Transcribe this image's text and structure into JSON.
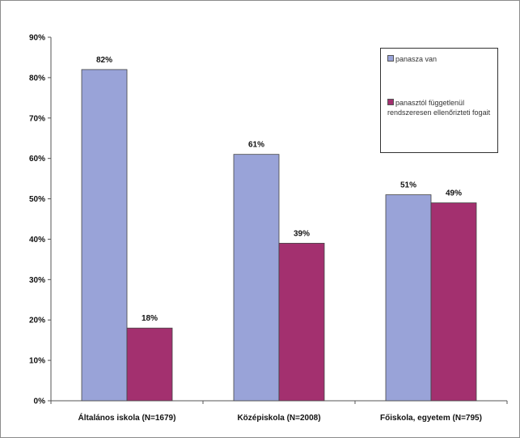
{
  "chart_data": {
    "type": "bar",
    "categories": [
      "Általános iskola (N=1679)",
      "Középiskola (N=2008)",
      "Főiskola, egyetem (N=795)"
    ],
    "series": [
      {
        "name": "panasza van",
        "values": [
          82,
          61,
          51
        ],
        "labels": [
          "82%",
          "61%",
          "51%"
        ],
        "color": "#99a3d8"
      },
      {
        "name": "panasztól függetlenül rendszeresen ellenőrizteti fogait",
        "values": [
          18,
          39,
          49
        ],
        "labels": [
          "18%",
          "39%",
          "49%"
        ],
        "color": "#a3306f"
      }
    ],
    "title": "",
    "xlabel": "",
    "ylabel": "",
    "ylim": [
      0,
      90
    ],
    "yticks": [
      "0%",
      "10%",
      "20%",
      "30%",
      "40%",
      "50%",
      "60%",
      "70%",
      "80%",
      "90%"
    ],
    "grid": false,
    "legend": "top-right"
  }
}
